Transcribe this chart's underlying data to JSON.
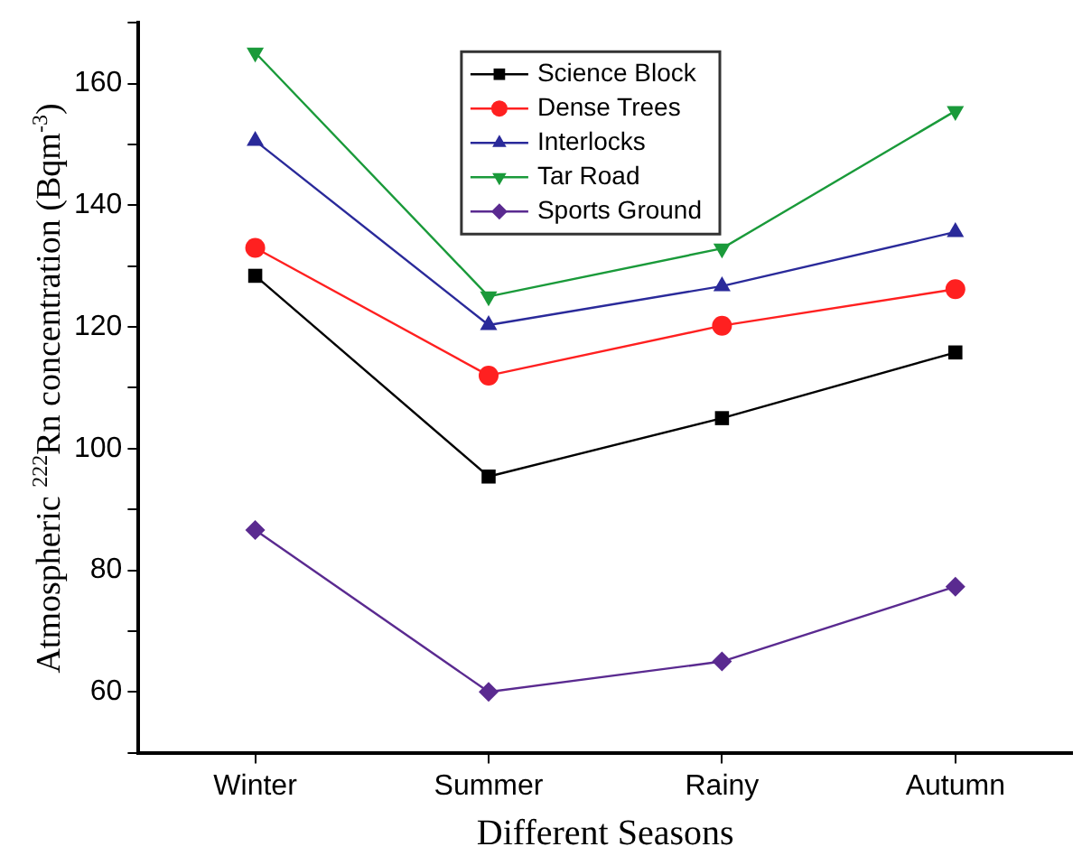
{
  "chart_data": {
    "type": "line",
    "xlabel": "Different Seasons",
    "ylabel": "Atmospheric $^{222}$Rn concentration (Bqm$^{-3}$)",
    "categories": [
      "Winter",
      "Summer",
      "Rainy",
      "Autumn"
    ],
    "series": [
      {
        "name": "Science Block",
        "color": "#000000",
        "marker": "square",
        "values": [
          128.4,
          95.4,
          105,
          115.8
        ]
      },
      {
        "name": "Dense Trees",
        "color": "#ff2020",
        "marker": "circle",
        "values": [
          133,
          112,
          120.2,
          126.2
        ]
      },
      {
        "name": "Interlocks",
        "color": "#2a2a9a",
        "marker": "triangle",
        "values": [
          150.6,
          120.3,
          126.7,
          135.6
        ]
      },
      {
        "name": "Tar Road",
        "color": "#1a9a3a",
        "marker": "triangle-down",
        "values": [
          165.1,
          125,
          132.9,
          155.5
        ]
      },
      {
        "name": "Sports Ground",
        "color": "#5a2a90",
        "marker": "diamond",
        "values": [
          86.6,
          60,
          65,
          77.3
        ]
      }
    ],
    "ylim": [
      50,
      170
    ],
    "yticks": [
      {
        "value": 50,
        "label": null
      },
      60,
      {
        "value": 70,
        "label": null
      },
      80,
      {
        "value": 90,
        "label": null
      },
      100,
      {
        "value": 110,
        "label": null
      },
      120,
      {
        "value": 130,
        "label": null
      },
      140,
      {
        "value": 150,
        "label": null
      },
      160,
      {
        "value": 170,
        "label": null
      }
    ],
    "grid": false,
    "legend": "top right",
    "line_style": "solid"
  }
}
